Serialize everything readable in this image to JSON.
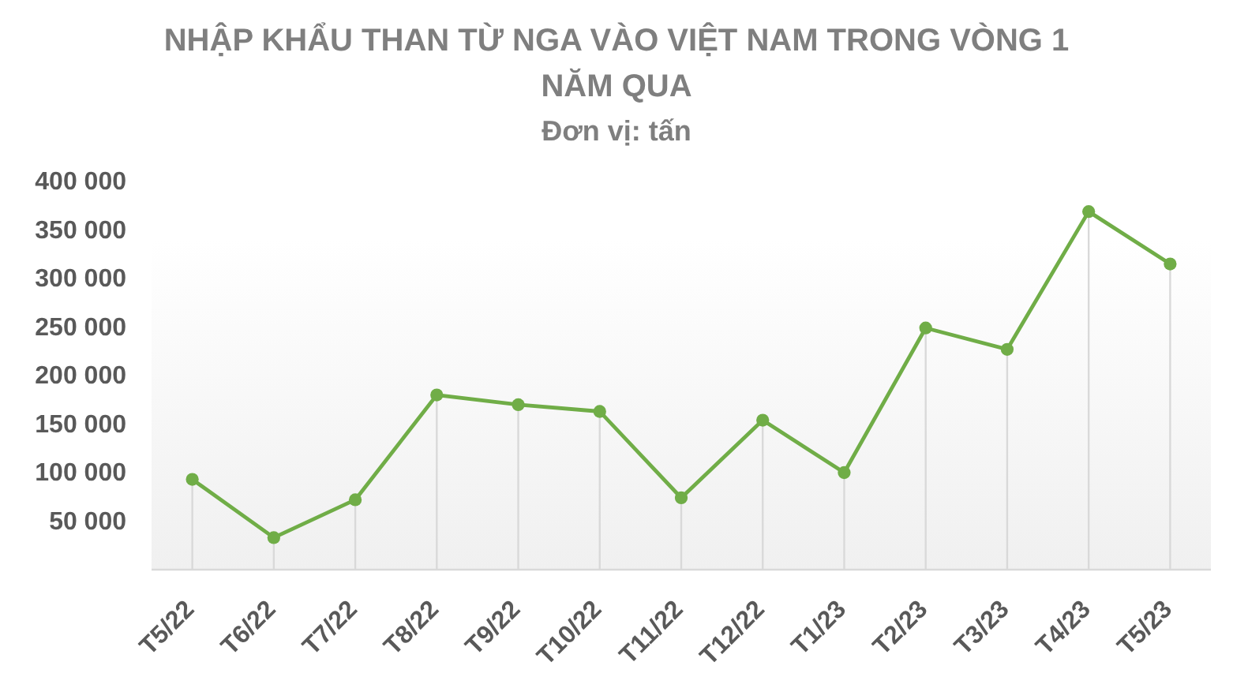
{
  "chart_data": {
    "type": "line",
    "title": "NHẬP KHẨU THAN TỪ NGA VÀO VIỆT NAM TRONG VÒNG 1 NĂM QUA",
    "subtitle": "Đơn vị: tấn",
    "categories": [
      "T5/22",
      "T6/22",
      "T7/22",
      "T8/22",
      "T9/22",
      "T10/22",
      "T11/22",
      "T12/22",
      "T1/23",
      "T2/23",
      "T3/23",
      "T4/23",
      "T5/23"
    ],
    "series": [
      {
        "color": "#70ad47",
        "values": [
          93000,
          33000,
          72000,
          180000,
          170000,
          163000,
          74000,
          154000,
          100000,
          249000,
          227000,
          369000,
          315000
        ]
      },
      {
        "type": "lollipop",
        "color": "#70ad47",
        "marker": "circle",
        "values": [
          93000,
          33000,
          72000,
          180000,
          170000,
          163000,
          74000,
          154000,
          100000,
          249000,
          227000,
          369000,
          315000
        ]
      }
    ],
    "ylim": [
      0,
      400000
    ],
    "yticks": [
      {
        "value": 50000,
        "label": "50 000"
      },
      {
        "value": 100000,
        "label": "100 000"
      },
      {
        "value": 150000,
        "label": "150 000"
      },
      {
        "value": 200000,
        "label": "200 000"
      },
      {
        "value": 250000,
        "label": "250 000"
      },
      {
        "value": 300000,
        "label": "300 000"
      },
      {
        "value": 350000,
        "label": "350 000"
      },
      {
        "value": 400000,
        "label": "400 000"
      }
    ],
    "line_style": "solid"
  }
}
